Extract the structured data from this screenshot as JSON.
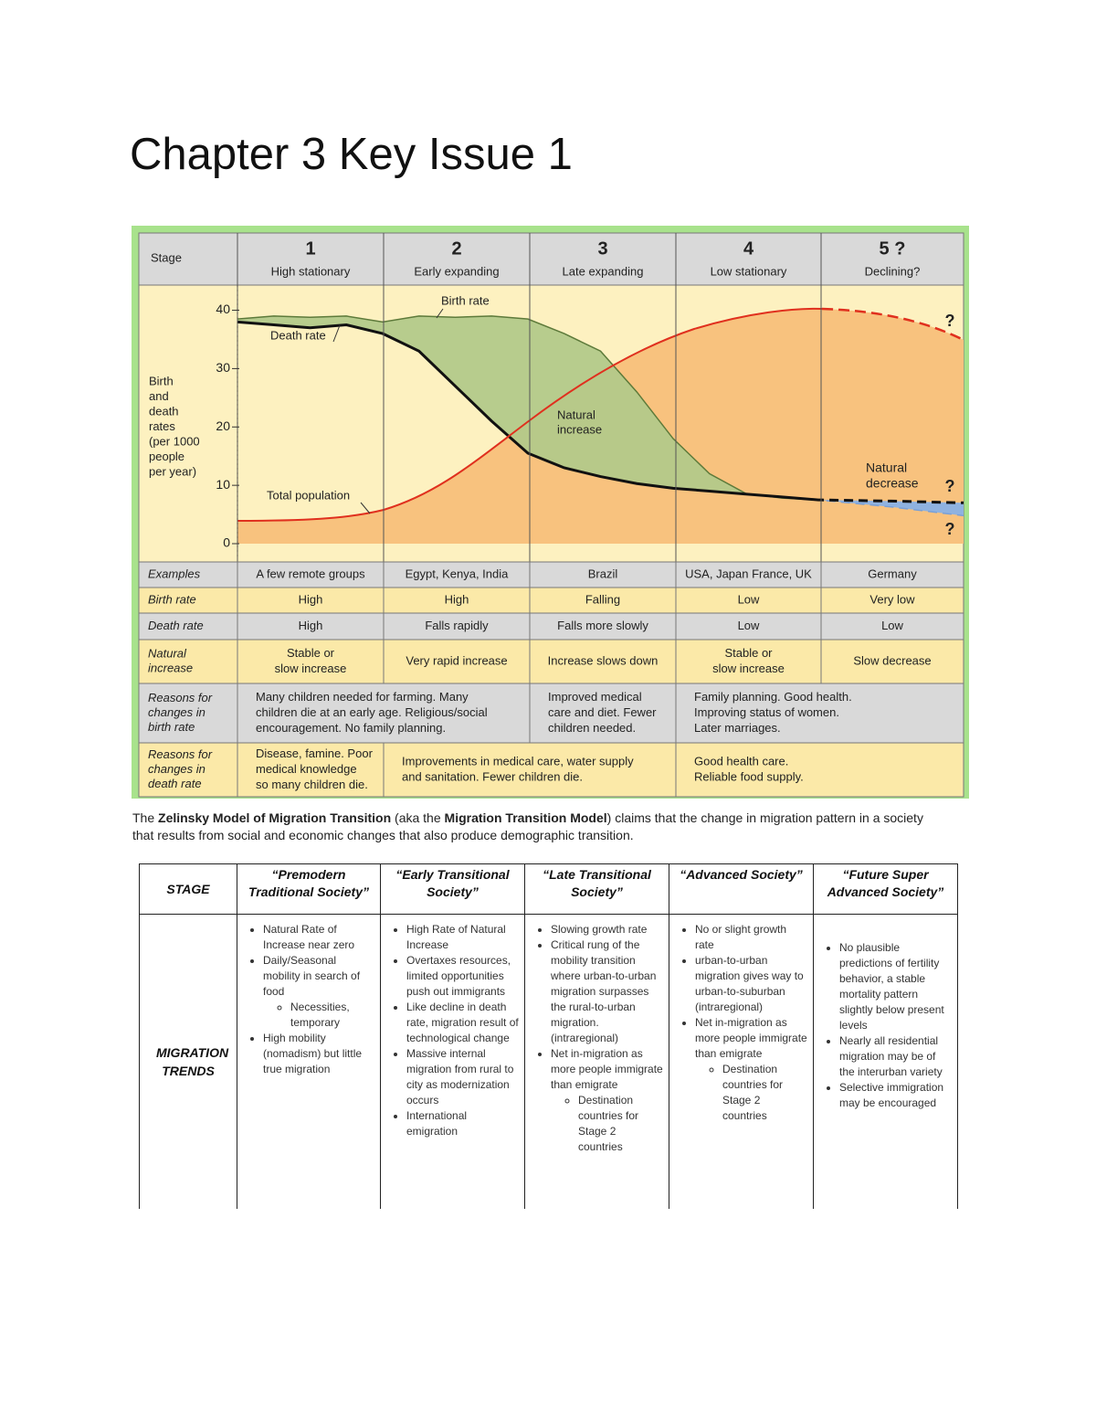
{
  "title": "Chapter 3 Key Issue 1",
  "diagram": {
    "stage_label": "Stage",
    "stages": [
      {
        "number": "1",
        "name": "High stationary"
      },
      {
        "number": "2",
        "name": "Early expanding"
      },
      {
        "number": "3",
        "name": "Late expanding"
      },
      {
        "number": "4",
        "name": "Low stationary"
      },
      {
        "number": "5 ?",
        "name": "Declining?"
      }
    ],
    "y_axis_label": [
      "Birth",
      "and",
      "death",
      "rates",
      "(per 1000",
      "people",
      "per year)"
    ],
    "chart_data": {
      "type": "line",
      "ylim": [
        0,
        44
      ],
      "yticks": [
        0,
        10,
        20,
        30,
        40
      ],
      "xlim": [
        0,
        5
      ],
      "projected_from": 4,
      "x": [
        0,
        0.25,
        0.5,
        0.75,
        1,
        1.25,
        1.5,
        1.75,
        2,
        2.25,
        2.5,
        2.75,
        3,
        3.25,
        3.5,
        3.75,
        4,
        4.5,
        5
      ],
      "series": [
        {
          "name": "Birth rate",
          "color": "#5d7a3a",
          "values": [
            38.5,
            39,
            38.8,
            39,
            38,
            39,
            38.8,
            39,
            38.5,
            36,
            33,
            26,
            18,
            12,
            8.6,
            7.8,
            7.5,
            6.3,
            4.8
          ]
        },
        {
          "name": "Death rate",
          "color": "#111111",
          "values": [
            38,
            37.5,
            37,
            37.5,
            36,
            33,
            27,
            21,
            15.5,
            13,
            11.5,
            10.3,
            9.5,
            9,
            8.5,
            8,
            7.5,
            7.3,
            7
          ]
        }
      ],
      "annotations": {
        "population": "Total population",
        "increase": [
          "Natural",
          "increase"
        ],
        "decrease": [
          "Natural",
          "decrease"
        ],
        "question": "?"
      }
    },
    "rows": [
      {
        "label": [
          "Examples"
        ],
        "cells": [
          {
            "span": 1,
            "lines": [
              "A few remote groups"
            ]
          },
          {
            "span": 1,
            "lines": [
              "Egypt, Kenya, India"
            ]
          },
          {
            "span": 1,
            "lines": [
              "Brazil"
            ]
          },
          {
            "span": 1,
            "lines": [
              "USA, Japan France, UK"
            ]
          },
          {
            "span": 1,
            "lines": [
              "Germany"
            ]
          }
        ]
      },
      {
        "label": [
          "Birth rate"
        ],
        "cells": [
          {
            "span": 1,
            "lines": [
              "High"
            ]
          },
          {
            "span": 1,
            "lines": [
              "High"
            ]
          },
          {
            "span": 1,
            "lines": [
              "Falling"
            ]
          },
          {
            "span": 1,
            "lines": [
              "Low"
            ]
          },
          {
            "span": 1,
            "lines": [
              "Very low"
            ]
          }
        ]
      },
      {
        "label": [
          "Death rate"
        ],
        "cells": [
          {
            "span": 1,
            "lines": [
              "High"
            ]
          },
          {
            "span": 1,
            "lines": [
              "Falls rapidly"
            ]
          },
          {
            "span": 1,
            "lines": [
              "Falls more slowly"
            ]
          },
          {
            "span": 1,
            "lines": [
              "Low"
            ]
          },
          {
            "span": 1,
            "lines": [
              "Low"
            ]
          }
        ]
      },
      {
        "label": [
          "Natural",
          "increase"
        ],
        "cells": [
          {
            "span": 1,
            "lines": [
              "Stable or",
              "slow increase"
            ]
          },
          {
            "span": 1,
            "lines": [
              "Very rapid increase"
            ]
          },
          {
            "span": 1,
            "lines": [
              "Increase slows down"
            ]
          },
          {
            "span": 1,
            "lines": [
              "Stable or",
              "slow increase"
            ]
          },
          {
            "span": 1,
            "lines": [
              "Slow decrease"
            ]
          }
        ]
      },
      {
        "label": [
          "Reasons for",
          "changes in",
          "birth rate"
        ],
        "cells": [
          {
            "span": 2,
            "lines": [
              "Many children needed for farming. Many",
              "children die at an early age. Religious/social",
              "encouragement. No family planning."
            ]
          },
          {
            "span": 1,
            "lines": [
              "Improved medical",
              "care and diet. Fewer",
              "children needed."
            ]
          },
          {
            "span": 2,
            "lines": [
              "Family planning. Good health.",
              "Improving status of women.",
              "Later marriages."
            ]
          }
        ]
      },
      {
        "label": [
          "Reasons for",
          "changes in",
          "death rate"
        ],
        "cells": [
          {
            "span": 1,
            "lines": [
              "Disease, famine. Poor",
              "medical knowledge",
              "so many children die."
            ]
          },
          {
            "span": 2,
            "lines": [
              "Improvements in medical care, water supply",
              "and sanitation. Fewer children die."
            ]
          },
          {
            "span": 2,
            "lines": [
              "Good health care.",
              "Reliable food supply."
            ]
          }
        ]
      }
    ]
  },
  "paragraph": [
    {
      "text": "The "
    },
    {
      "text": "Zelinsky Model of Migration Transition",
      "bold": true
    },
    {
      "text": " (aka the "
    },
    {
      "text": "Migration Transition Model",
      "bold": true
    },
    {
      "text": ") claims that the change in migration pattern in a society that results from social and economic changes that also produce demographic transition."
    }
  ],
  "migration_table": {
    "header": [
      "STAGE",
      "“Premodern Traditional Society”",
      "“Early Transitional Society”",
      "“Late Transitional Society”",
      "“Advanced Society”",
      "“Future Super Advanced Society”"
    ],
    "row_label": "MIGRATION TRENDS",
    "cells": [
      [
        {
          "text": "Natural Rate of Increase near zero"
        },
        {
          "text": "Daily/Seasonal mobility in search of food",
          "sub": [
            "Necessities, temporary"
          ]
        },
        {
          "text": "High mobility (nomadism) but little true migration"
        }
      ],
      [
        {
          "text": "High Rate of Natural Increase"
        },
        {
          "text": "Overtaxes resources, limited opportunities push out immigrants"
        },
        {
          "text": "Like decline in death rate, migration result of technological change"
        },
        {
          "text": "Massive internal migration from rural to city as modernization occurs"
        },
        {
          "text": "International emigration"
        }
      ],
      [
        {
          "text": "Slowing growth rate"
        },
        {
          "text": "Critical rung of the mobility transition where urban-to-urban migration surpasses the rural-to-urban migration. (intraregional)"
        },
        {
          "text": "Net in-migration as more people immigrate than emigrate",
          "sub": [
            "Destination countries for Stage 2 countries"
          ]
        }
      ],
      [
        {
          "text": "No or slight growth rate"
        },
        {
          "text": "urban-to-urban migration gives way to urban-to-suburban (intraregional)"
        },
        {
          "text": "Net in-migration as more people immigrate than emigrate",
          "sub": [
            "Destination countries for Stage 2 countries"
          ]
        }
      ],
      [
        {
          "text": "No plausible predictions of fertility behavior, a stable mortality pattern slightly below present levels"
        },
        {
          "text": "Nearly all residential migration may be of the interurban variety"
        },
        {
          "text": "Selective immigration may be encouraged"
        }
      ]
    ]
  }
}
